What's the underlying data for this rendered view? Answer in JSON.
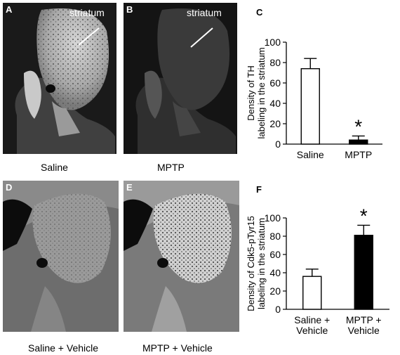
{
  "panels": {
    "A": {
      "letter": "A",
      "label": "striatum",
      "caption": "Saline"
    },
    "B": {
      "letter": "B",
      "label": "striatum",
      "caption": "MPTP"
    },
    "C": {
      "letter": "C"
    },
    "D": {
      "letter": "D",
      "caption": "Saline + Vehicle"
    },
    "E": {
      "letter": "E",
      "caption": "MPTP + Vehicle"
    },
    "F": {
      "letter": "F"
    }
  },
  "chart_data": [
    {
      "type": "bar",
      "panel": "C",
      "title": "",
      "ylabel": [
        "Density of TH",
        "labeling in the striatum"
      ],
      "categories": [
        "Saline",
        "MPTP"
      ],
      "values": [
        74,
        4
      ],
      "errors": [
        10,
        4
      ],
      "bar_colors": [
        "#ffffff",
        "#000000"
      ],
      "significance": [
        "",
        "*"
      ],
      "ylim": [
        0,
        100
      ],
      "yticks": [
        0,
        20,
        40,
        60,
        80,
        100
      ],
      "grid": false
    },
    {
      "type": "bar",
      "panel": "F",
      "title": "",
      "ylabel": [
        "Density of Cdk5-pTyr15",
        "labeling in the striatum"
      ],
      "categories": [
        [
          "Saline +",
          "Vehicle"
        ],
        [
          "MPTP +",
          "Vehicle"
        ]
      ],
      "values": [
        36,
        81
      ],
      "errors": [
        8,
        11
      ],
      "bar_colors": [
        "#ffffff",
        "#000000"
      ],
      "significance": [
        "",
        "*"
      ],
      "ylim": [
        0,
        100
      ],
      "yticks": [
        0,
        20,
        40,
        60,
        80,
        100
      ],
      "grid": false
    }
  ]
}
